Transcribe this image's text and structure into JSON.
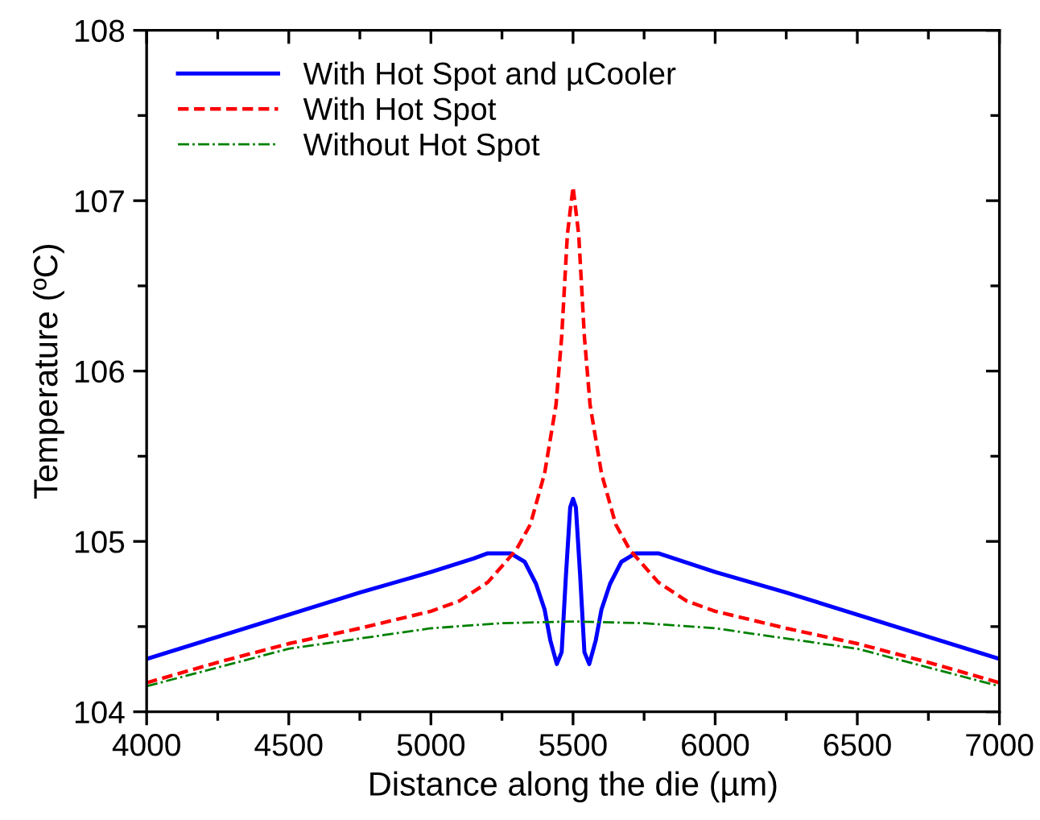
{
  "chart_data": {
    "type": "line",
    "xlabel": "Distance along the die (µm)",
    "ylabel": "Temperature (ºC)",
    "xlim": [
      4000,
      7000
    ],
    "xticks": [
      4000,
      4500,
      5000,
      5500,
      6000,
      6500,
      7000
    ],
    "ylim": [
      104,
      108
    ],
    "yticks": [
      104,
      105,
      106,
      107,
      108
    ],
    "grid": false,
    "legend": "top left",
    "series": [
      {
        "name": "With Hot Spot and µCooler",
        "color": "#0000ff",
        "line_style": "solid",
        "x": [
          4000,
          4250,
          4500,
          4750,
          5000,
          5150,
          5200,
          5280,
          5330,
          5370,
          5400,
          5420,
          5443,
          5460,
          5475,
          5490,
          5500,
          5510,
          5525,
          5540,
          5557,
          5580,
          5600,
          5630,
          5670,
          5720,
          5800,
          6000,
          6250,
          6500,
          6750,
          7000
        ],
        "values": [
          104.31,
          104.44,
          104.57,
          104.7,
          104.82,
          104.9,
          104.93,
          104.93,
          104.88,
          104.75,
          104.6,
          104.42,
          104.28,
          104.35,
          104.8,
          105.2,
          105.25,
          105.2,
          104.8,
          104.35,
          104.28,
          104.42,
          104.6,
          104.75,
          104.88,
          104.93,
          104.93,
          104.82,
          104.7,
          104.57,
          104.44,
          104.31
        ]
      },
      {
        "name": "With Hot Spot",
        "color": "#ff0000",
        "line_style": "dashed",
        "x": [
          4000,
          4250,
          4500,
          4750,
          5000,
          5100,
          5200,
          5300,
          5350,
          5400,
          5440,
          5460,
          5480,
          5500,
          5520,
          5540,
          5560,
          5600,
          5650,
          5700,
          5800,
          5900,
          6000,
          6250,
          6500,
          6750,
          7000
        ],
        "values": [
          104.17,
          104.29,
          104.4,
          104.49,
          104.59,
          104.65,
          104.76,
          104.95,
          105.1,
          105.4,
          105.8,
          106.2,
          106.8,
          107.08,
          106.8,
          106.2,
          105.8,
          105.4,
          105.1,
          104.95,
          104.76,
          104.65,
          104.59,
          104.49,
          104.4,
          104.29,
          104.17
        ]
      },
      {
        "name": "Without Hot Spot",
        "color": "#008000",
        "line_style": "dashdot",
        "x": [
          4000,
          4500,
          5000,
          5250,
          5500,
          5750,
          6000,
          6500,
          7000
        ],
        "values": [
          104.15,
          104.37,
          104.49,
          104.52,
          104.53,
          104.52,
          104.49,
          104.37,
          104.15
        ]
      }
    ]
  }
}
